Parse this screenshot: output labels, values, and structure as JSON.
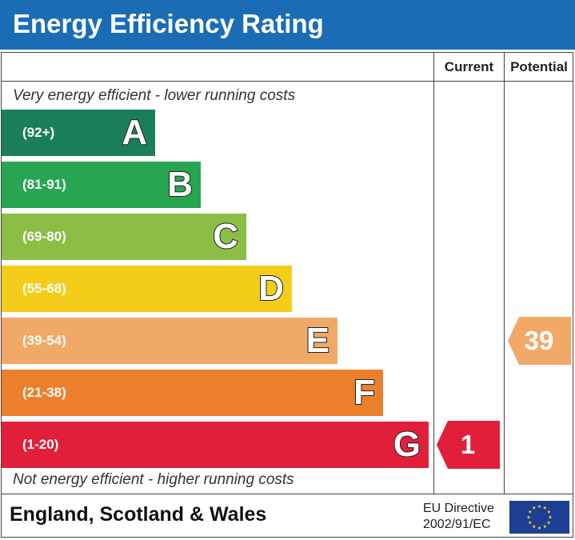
{
  "header": {
    "title": "Energy Efficiency Rating"
  },
  "columns": {
    "current": "Current",
    "potential": "Potential"
  },
  "notes": {
    "top": "Very energy efficient - lower running costs",
    "bottom": "Not energy efficient - higher running costs"
  },
  "chart_data": {
    "type": "bar",
    "bands": [
      {
        "letter": "A",
        "range": "(92+)",
        "color": "#1a7f56"
      },
      {
        "letter": "B",
        "range": "(81-91)",
        "color": "#27a551"
      },
      {
        "letter": "C",
        "range": "(69-80)",
        "color": "#8cbd45"
      },
      {
        "letter": "D",
        "range": "(55-68)",
        "color": "#f4cd1b"
      },
      {
        "letter": "E",
        "range": "(39-54)",
        "color": "#f1a968"
      },
      {
        "letter": "F",
        "range": "(21-38)",
        "color": "#eb7f2b"
      },
      {
        "letter": "G",
        "range": "(1-20)",
        "color": "#e11f3a"
      }
    ],
    "current": {
      "value": "1",
      "band": "G",
      "color": "#e11f3a"
    },
    "potential": {
      "value": "39",
      "band": "E",
      "color": "#f1a968"
    }
  },
  "footer": {
    "region": "England, Scotland & Wales",
    "directive_line1": "EU Directive",
    "directive_line2": "2002/91/EC"
  },
  "flag_icon": "eu-flag-icon"
}
